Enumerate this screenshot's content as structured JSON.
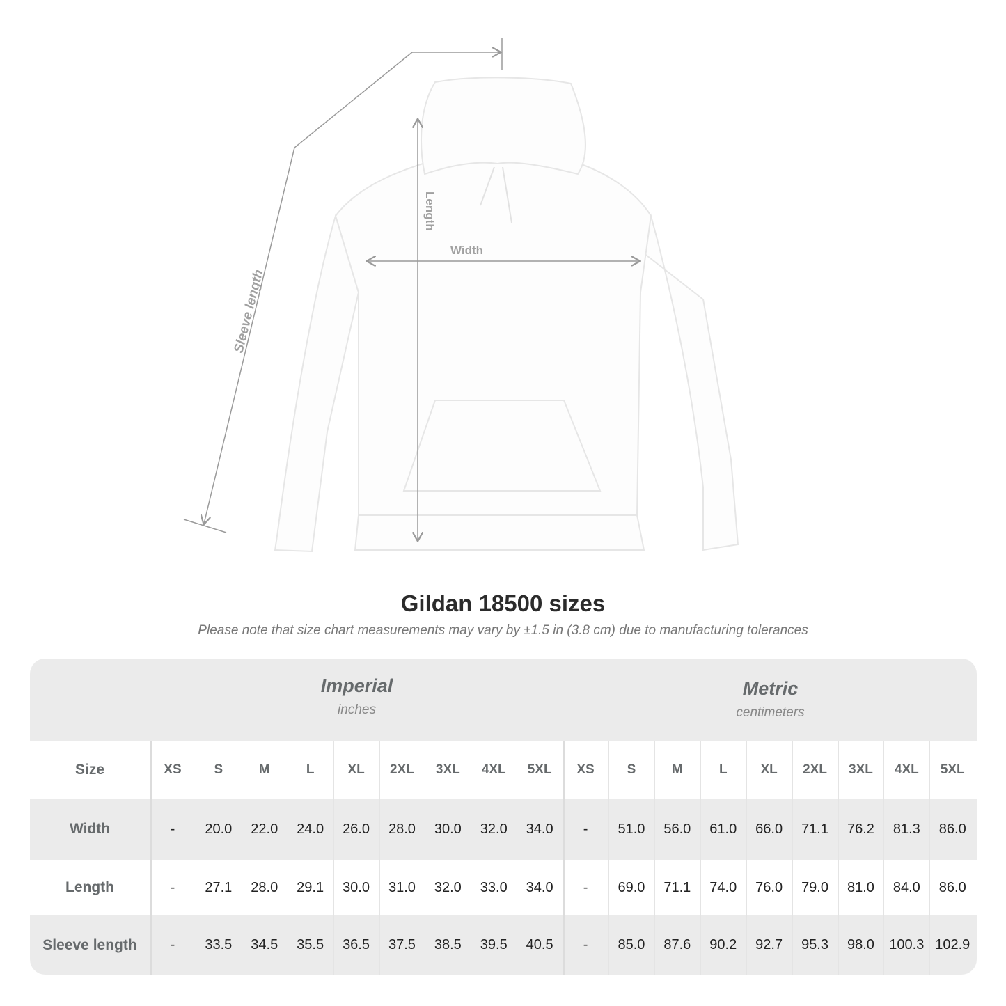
{
  "diagram": {
    "labels": {
      "sleeve": "Sleeve length",
      "length": "Length",
      "width": "Width"
    },
    "line_color": "#9a9a9a"
  },
  "heading": {
    "title": "Gildan 18500 sizes",
    "note": "Please note that size chart measurements may vary by ±1.5 in (3.8 cm) due to manufacturing tolerances"
  },
  "table": {
    "groups": [
      {
        "name": "Imperial",
        "unit": "inches"
      },
      {
        "name": "Metric",
        "unit": "centimeters"
      }
    ],
    "size_label": "Size",
    "sizes": [
      "XS",
      "S",
      "M",
      "L",
      "XL",
      "2XL",
      "3XL",
      "4XL",
      "5XL"
    ],
    "rows": [
      {
        "label": "Width",
        "imperial": [
          "-",
          "20.0",
          "22.0",
          "24.0",
          "26.0",
          "28.0",
          "30.0",
          "32.0",
          "34.0"
        ],
        "metric": [
          "-",
          "51.0",
          "56.0",
          "61.0",
          "66.0",
          "71.1",
          "76.2",
          "81.3",
          "86.0"
        ]
      },
      {
        "label": "Length",
        "imperial": [
          "-",
          "27.1",
          "28.0",
          "29.1",
          "30.0",
          "31.0",
          "32.0",
          "33.0",
          "34.0"
        ],
        "metric": [
          "-",
          "69.0",
          "71.1",
          "74.0",
          "76.0",
          "79.0",
          "81.0",
          "84.0",
          "86.0"
        ]
      },
      {
        "label": "Sleeve length",
        "imperial": [
          "-",
          "33.5",
          "34.5",
          "35.5",
          "36.5",
          "37.5",
          "38.5",
          "39.5",
          "40.5"
        ],
        "metric": [
          "-",
          "85.0",
          "87.6",
          "90.2",
          "92.7",
          "95.3",
          "98.0",
          "100.3",
          "102.9"
        ]
      }
    ],
    "colors": {
      "header_bg": "#ebebeb",
      "label_text": "#666a6c",
      "value_text": "#222222"
    }
  }
}
